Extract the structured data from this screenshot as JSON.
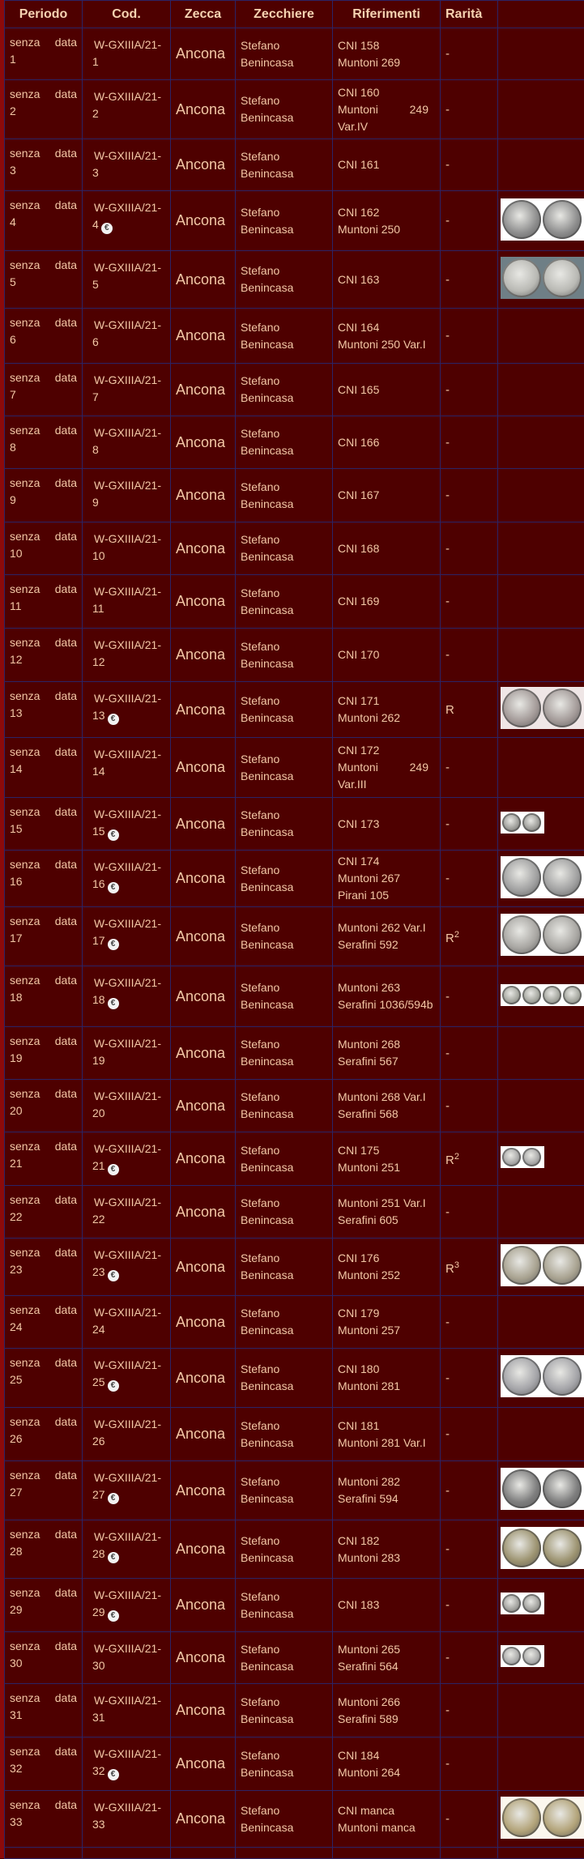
{
  "header": {
    "periodo": "Periodo",
    "cod": "Cod.",
    "zecca": "Zecca",
    "zecchiere": "Zecchiere",
    "riferimenti": "Riferimenti",
    "rarita": "Rarità"
  },
  "colors": {
    "background": "#4e0000",
    "text": "#f3c8a6",
    "border": "#2c2466"
  },
  "rows": [
    {
      "periodo": "senza data",
      "n": "1",
      "cod": "W-GXIIIA/21-",
      "euro": false,
      "zecca": "Ancona",
      "zecchiere": "Stefano Benincasa",
      "rif": [
        "CNI 158",
        "Muntoni 269"
      ],
      "rarita": "-",
      "rar_sup": "",
      "coins": null
    },
    {
      "periodo": "senza data",
      "n": "2",
      "cod": "W-GXIIIA/21-",
      "euro": false,
      "zecca": "Ancona",
      "zecchiere": "Stefano Benincasa",
      "rif": [
        "CNI 160",
        "Muntoni 249 Var.IV"
      ],
      "rarita": "-",
      "rar_sup": "",
      "coins": null
    },
    {
      "periodo": "senza data",
      "n": "3",
      "cod": "W-GXIIIA/21-",
      "euro": false,
      "zecca": "Ancona",
      "zecchiere": "Stefano Benincasa",
      "rif": [
        "CNI 161"
      ],
      "rarita": "-",
      "rar_sup": "",
      "coins": null
    },
    {
      "periodo": "senza data",
      "n": "4",
      "cod": "W-GXIIIA/21-",
      "euro": true,
      "zecca": "Ancona",
      "zecchiere": "Stefano Benincasa",
      "rif": [
        "CNI 162",
        "Muntoni 250"
      ],
      "rarita": "-",
      "rar_sup": "",
      "coins": {
        "size": "big",
        "count": 2,
        "tone": "#8e8e8e",
        "bg": "#ffffff"
      }
    },
    {
      "periodo": "senza data",
      "n": "5",
      "cod": "W-GXIIIA/21-",
      "euro": false,
      "zecca": "Ancona",
      "zecchiere": "Stefano Benincasa",
      "rif": [
        "CNI 163"
      ],
      "rarita": "-",
      "rar_sup": "",
      "coins": {
        "size": "big",
        "count": 2,
        "tone": "#b9b9b4",
        "bg": "#6f7f86"
      }
    },
    {
      "periodo": "senza data",
      "n": "6",
      "cod": "W-GXIIIA/21-",
      "euro": false,
      "zecca": "Ancona",
      "zecchiere": "Stefano Benincasa",
      "rif": [
        "CNI 164",
        "Muntoni 250 Var.I"
      ],
      "rarita": "-",
      "rar_sup": "",
      "coins": null
    },
    {
      "periodo": "senza data",
      "n": "7",
      "cod": "W-GXIIIA/21-",
      "euro": false,
      "zecca": "Ancona",
      "zecchiere": "Stefano Benincasa",
      "rif": [
        "CNI 165"
      ],
      "rarita": "-",
      "rar_sup": "",
      "coins": null
    },
    {
      "periodo": "senza data",
      "n": "8",
      "cod": "W-GXIIIA/21-",
      "euro": false,
      "zecca": "Ancona",
      "zecchiere": "Stefano Benincasa",
      "rif": [
        "CNI 166"
      ],
      "rarita": "-",
      "rar_sup": "",
      "coins": null
    },
    {
      "periodo": "senza data",
      "n": "9",
      "cod": "W-GXIIIA/21-",
      "euro": false,
      "zecca": "Ancona",
      "zecchiere": "Stefano Benincasa",
      "rif": [
        "CNI 167"
      ],
      "rarita": "-",
      "rar_sup": "",
      "coins": null
    },
    {
      "periodo": "senza data",
      "n": "10",
      "cod": "W-GXIIIA/21-",
      "euro": false,
      "zecca": "Ancona",
      "zecchiere": "Stefano Benincasa",
      "rif": [
        "CNI 168"
      ],
      "rarita": "-",
      "rar_sup": "",
      "coins": null
    },
    {
      "periodo": "senza data",
      "n": "11",
      "cod": "W-GXIIIA/21-",
      "euro": false,
      "zecca": "Ancona",
      "zecchiere": "Stefano Benincasa",
      "rif": [
        "CNI 169"
      ],
      "rarita": "-",
      "rar_sup": "",
      "coins": null
    },
    {
      "periodo": "senza data",
      "n": "12",
      "cod": "W-GXIIIA/21-",
      "euro": false,
      "zecca": "Ancona",
      "zecchiere": "Stefano Benincasa",
      "rif": [
        "CNI 170"
      ],
      "rarita": "-",
      "rar_sup": "",
      "coins": null
    },
    {
      "periodo": "senza data",
      "n": "13",
      "cod": "W-GXIIIA/21-",
      "euro": true,
      "zecca": "Ancona",
      "zecchiere": "Stefano Benincasa",
      "rif": [
        "CNI 171",
        "Muntoni 262"
      ],
      "rarita": "R",
      "rar_sup": "",
      "coins": {
        "size": "big",
        "count": 2,
        "tone": "#a39a98",
        "bg": "#efe6e6"
      }
    },
    {
      "periodo": "senza data",
      "n": "14",
      "cod": "W-GXIIIA/21-",
      "euro": false,
      "zecca": "Ancona",
      "zecchiere": "Stefano Benincasa",
      "rif": [
        "CNI 172",
        "Muntoni 249 Var.III"
      ],
      "rarita": "-",
      "rar_sup": "",
      "coins": null
    },
    {
      "periodo": "senza data",
      "n": "15",
      "cod": "W-GXIIIA/21-",
      "euro": true,
      "zecca": "Ancona",
      "zecchiere": "Stefano Benincasa",
      "rif": [
        "CNI 173"
      ],
      "rarita": "-",
      "rar_sup": "",
      "coins": {
        "size": "small",
        "count": 2,
        "tone": "#9a9a96",
        "bg": "#ffffff"
      }
    },
    {
      "periodo": "senza data",
      "n": "16",
      "cod": "W-GXIIIA/21-",
      "euro": true,
      "zecca": "Ancona",
      "zecchiere": "Stefano Benincasa",
      "rif": [
        "CNI 174",
        "Muntoni 267",
        "Pirani 105"
      ],
      "rarita": "-",
      "rar_sup": "",
      "coins": {
        "size": "big",
        "count": 2,
        "tone": "#a0a0a0",
        "bg": "#ffffff"
      }
    },
    {
      "periodo": "senza data",
      "n": "17",
      "cod": "W-GXIIIA/21-",
      "euro": true,
      "zecca": "Ancona",
      "zecchiere": "Stefano Benincasa",
      "rif": [
        "Muntoni 262 Var.I",
        "Serafini 592"
      ],
      "rarita": "R",
      "rar_sup": "2",
      "coins": {
        "size": "big",
        "count": 2,
        "tone": "#a8a6a2",
        "bg": "#ffffff"
      }
    },
    {
      "periodo": "senza data",
      "n": "18",
      "cod": "W-GXIIIA/21-",
      "euro": true,
      "zecca": "Ancona",
      "zecchiere": "Stefano Benincasa",
      "rif": [
        "Muntoni 263",
        "Serafini 1036/594b"
      ],
      "rarita": "-",
      "rar_sup": "",
      "coins": {
        "size": "small",
        "count": 4,
        "tone": "#a2a49c",
        "bg": "#ffffff"
      }
    },
    {
      "periodo": "senza data",
      "n": "19",
      "cod": "W-GXIIIA/21-",
      "euro": false,
      "zecca": "Ancona",
      "zecchiere": "Stefano Benincasa",
      "rif": [
        "Muntoni 268",
        "Serafini 567"
      ],
      "rarita": "-",
      "rar_sup": "",
      "coins": null
    },
    {
      "periodo": "senza data",
      "n": "20",
      "cod": "W-GXIIIA/21-",
      "euro": false,
      "zecca": "Ancona",
      "zecchiere": "Stefano Benincasa",
      "rif": [
        "Muntoni 268 Var.I",
        "Serafini 568"
      ],
      "rarita": "-",
      "rar_sup": "",
      "coins": null
    },
    {
      "periodo": "senza data",
      "n": "21",
      "cod": "W-GXIIIA/21-",
      "euro": true,
      "zecca": "Ancona",
      "zecchiere": "Stefano Benincasa",
      "rif": [
        "CNI 175",
        "Muntoni 251"
      ],
      "rarita": "R",
      "rar_sup": "2",
      "coins": {
        "size": "small",
        "count": 2,
        "tone": "#a6a6a6",
        "bg": "#ffffff"
      }
    },
    {
      "periodo": "senza data",
      "n": "22",
      "cod": "W-GXIIIA/21-",
      "euro": false,
      "zecca": "Ancona",
      "zecchiere": "Stefano Benincasa",
      "rif": [
        "Muntoni 251 Var.I",
        "Serafini 605"
      ],
      "rarita": "-",
      "rar_sup": "",
      "coins": null
    },
    {
      "periodo": "senza data",
      "n": "23",
      "cod": "W-GXIIIA/21-",
      "euro": true,
      "zecca": "Ancona",
      "zecchiere": "Stefano Benincasa",
      "rif": [
        "CNI 176",
        "Muntoni 252"
      ],
      "rarita": "R",
      "rar_sup": "3",
      "coins": {
        "size": "big",
        "count": 2,
        "tone": "#a8a290",
        "bg": "#ffffff"
      }
    },
    {
      "periodo": "senza data",
      "n": "24",
      "cod": "W-GXIIIA/21-",
      "euro": false,
      "zecca": "Ancona",
      "zecchiere": "Stefano Benincasa",
      "rif": [
        "CNI 179",
        "Muntoni 257"
      ],
      "rarita": "-",
      "rar_sup": "",
      "coins": null
    },
    {
      "periodo": "senza data",
      "n": "25",
      "cod": "W-GXIIIA/21-",
      "euro": true,
      "zecca": "Ancona",
      "zecchiere": "Stefano Benincasa",
      "rif": [
        "CNI 180",
        "Muntoni 281"
      ],
      "rarita": "-",
      "rar_sup": "",
      "coins": {
        "size": "big",
        "count": 2,
        "tone": "#a4a4a8",
        "bg": "#ffffff"
      }
    },
    {
      "periodo": "senza data",
      "n": "26",
      "cod": "W-GXIIIA/21-",
      "euro": false,
      "zecca": "Ancona",
      "zecchiere": "Stefano Benincasa",
      "rif": [
        "CNI 181",
        "Muntoni 281 Var.I"
      ],
      "rarita": "-",
      "rar_sup": "",
      "coins": null
    },
    {
      "periodo": "senza data",
      "n": "27",
      "cod": "W-GXIIIA/21-",
      "euro": true,
      "zecca": "Ancona",
      "zecchiere": "Stefano Benincasa",
      "rif": [
        "Muntoni 282",
        "Serafini 594"
      ],
      "rarita": "-",
      "rar_sup": "",
      "coins": {
        "size": "big",
        "count": 2,
        "tone": "#7e7e7e",
        "bg": "#ffffff"
      }
    },
    {
      "periodo": "senza data",
      "n": "28",
      "cod": "W-GXIIIA/21-",
      "euro": true,
      "zecca": "Ancona",
      "zecchiere": "Stefano Benincasa",
      "rif": [
        "CNI 182",
        "Muntoni 283"
      ],
      "rarita": "-",
      "rar_sup": "",
      "coins": {
        "size": "big",
        "count": 2,
        "tone": "#9c9370",
        "bg": "#ffffff"
      }
    },
    {
      "periodo": "senza data",
      "n": "29",
      "cod": "W-GXIIIA/21-",
      "euro": true,
      "zecca": "Ancona",
      "zecchiere": "Stefano Benincasa",
      "rif": [
        "CNI 183"
      ],
      "rarita": "-",
      "rar_sup": "",
      "coins": {
        "size": "small",
        "count": 2,
        "tone": "#9e9e9a",
        "bg": "#ffffff"
      }
    },
    {
      "periodo": "senza data",
      "n": "30",
      "cod": "W-GXIIIA/21-",
      "euro": false,
      "zecca": "Ancona",
      "zecchiere": "Stefano Benincasa",
      "rif": [
        "Muntoni 265",
        "Serafini 564"
      ],
      "rarita": "-",
      "rar_sup": "",
      "coins": {
        "size": "small",
        "count": 2,
        "tone": "#a8a8a8",
        "bg": "#ffffff"
      }
    },
    {
      "periodo": "senza data",
      "n": "31",
      "cod": "W-GXIIIA/21-",
      "euro": false,
      "zecca": "Ancona",
      "zecchiere": "Stefano Benincasa",
      "rif": [
        "Muntoni 266",
        "Serafini 589"
      ],
      "rarita": "-",
      "rar_sup": "",
      "coins": null
    },
    {
      "periodo": "senza data",
      "n": "32",
      "cod": "W-GXIIIA/21-",
      "euro": true,
      "zecca": "Ancona",
      "zecchiere": "Stefano Benincasa",
      "rif": [
        "CNI 184",
        "Muntoni 264"
      ],
      "rarita": "-",
      "rar_sup": "",
      "coins": null
    },
    {
      "periodo": "senza data",
      "n": "33",
      "cod": "W-GXIIIA/21-",
      "euro": false,
      "zecca": "Ancona",
      "zecchiere": "Stefano Benincasa",
      "rif": [
        "CNI manca",
        "Muntoni manca"
      ],
      "rarita": "-",
      "rar_sup": "",
      "coins": {
        "size": "big",
        "count": 2,
        "tone": "#b3a47a",
        "bg": "#fbf7ee"
      }
    }
  ]
}
